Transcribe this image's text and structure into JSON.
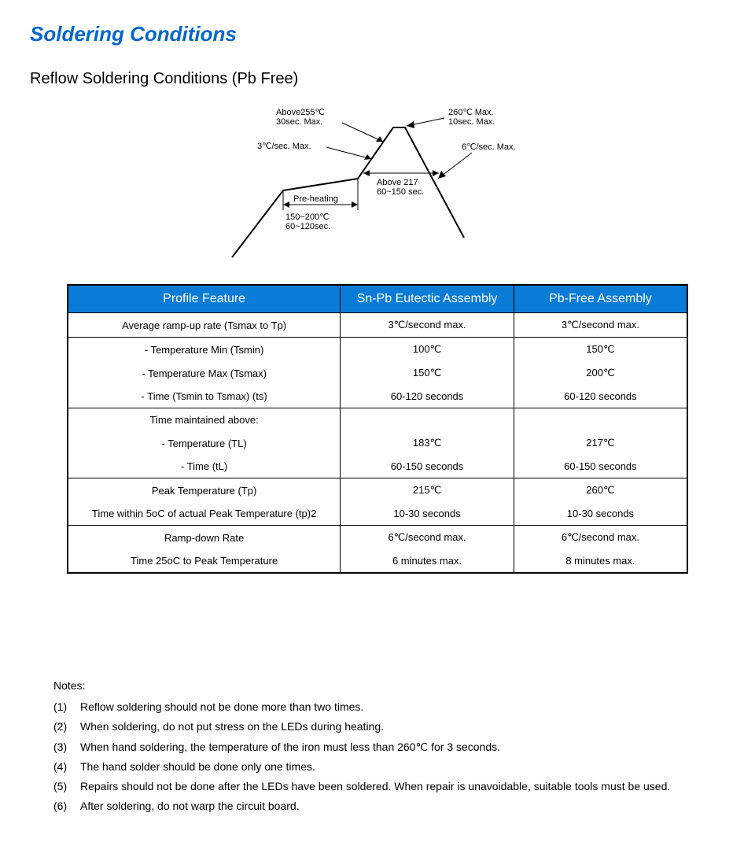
{
  "title": "Soldering Conditions",
  "subtitle": "Reflow Soldering Conditions (Pb Free)",
  "diagram": {
    "labels": {
      "above255": "Above255℃\n30sec. Max.",
      "ramp3": "3℃/sec. Max.",
      "preheat": "Pre-heating",
      "preheat_range": "150~200℃\n60~120sec.",
      "peak": "260℃ Max.\n10sec. Max.",
      "ramp6": "6℃/sec. Max.",
      "above217": "Above 217\n60~150 sec."
    },
    "stroke": "#000000"
  },
  "table": {
    "header_bg": "#0a7bd6",
    "header_fg": "#ffffff",
    "columns": [
      "Profile Feature",
      "Sn-Pb Eutectic Assembly",
      "Pb-Free Assembly"
    ],
    "groups": [
      {
        "rows": [
          [
            "Average ramp-up rate (Tsmax to Tp)",
            "3℃/second max.",
            "3℃/second max."
          ]
        ]
      },
      {
        "rows": [
          [
            "- Temperature Min (Tsmin)",
            "100℃",
            "150℃"
          ],
          [
            "- Temperature Max (Tsmax)",
            "150℃",
            "200℃"
          ],
          [
            "- Time (Tsmin to Tsmax) (ts)",
            "60-120 seconds",
            "60-120 seconds"
          ]
        ]
      },
      {
        "rows": [
          [
            "Time maintained above:",
            "",
            ""
          ],
          [
            "- Temperature (TL)",
            "183℃",
            "217℃"
          ],
          [
            "- Time (tL)",
            "60-150 seconds",
            "60-150 seconds"
          ]
        ]
      },
      {
        "rows": [
          [
            "Peak Temperature (Tp)",
            "215℃",
            "260℃"
          ],
          [
            "Time within 5oC of actual Peak Temperature (tp)2",
            "10-30 seconds",
            "10-30 seconds"
          ]
        ]
      },
      {
        "rows": [
          [
            "Ramp-down Rate",
            "6℃/second max.",
            "6℃/second max."
          ],
          [
            "Time 25oC to Peak Temperature",
            "6 minutes max.",
            "8 minutes max."
          ]
        ]
      }
    ]
  },
  "notes_title": "Notes:",
  "notes": [
    "Reflow soldering should not be done more than two times.",
    "When soldering, do not put stress on the LEDs during heating.",
    "When hand soldering, the temperature of the iron must less than 260℃  for 3 seconds.",
    "The hand solder should be done only one times.",
    "Repairs should not be done after the LEDs have been soldered. When repair is unavoidable, suitable tools must be used.",
    "After soldering, do not warp the circuit board."
  ]
}
